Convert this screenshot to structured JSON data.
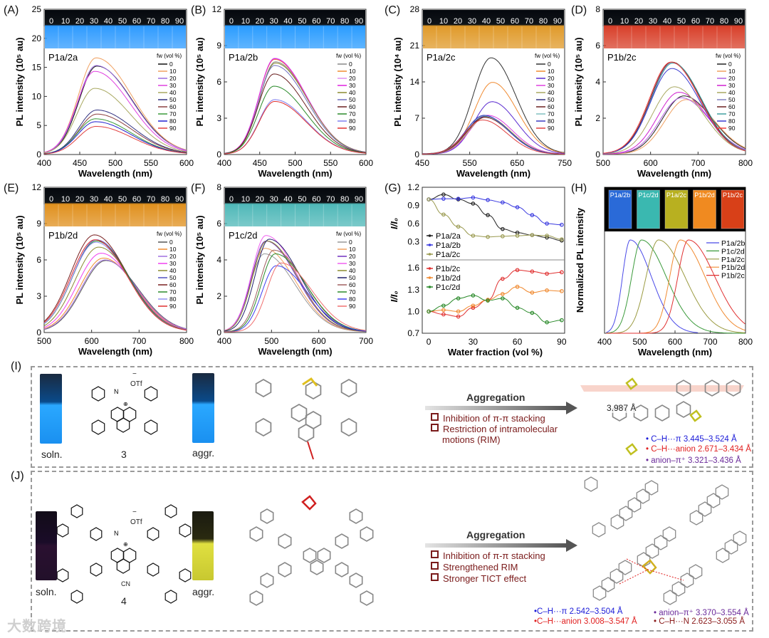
{
  "figure": {
    "panel_labels": {
      "A": "(A)",
      "B": "(B)",
      "C": "(C)",
      "D": "(D)",
      "E": "(E)",
      "F": "(F)",
      "G": "(G)",
      "H": "(H)",
      "I": "(I)",
      "J": "(J)"
    }
  },
  "chart_data": [
    {
      "id": "A",
      "type": "line",
      "title": "P1a/2a",
      "xlabel": "Wavelength (nm)",
      "ylabel": "PL intensity (10⁵ au)",
      "xlim": [
        400,
        600
      ],
      "ylim": [
        0,
        25
      ],
      "xticks": [
        400,
        450,
        500,
        550,
        600
      ],
      "yticks": [
        0,
        5,
        10,
        15,
        20,
        25
      ],
      "legend_title": "fw (vol %)",
      "legend_position": "right",
      "photo_labels": [
        "0",
        "10",
        "20",
        "30",
        "40",
        "50",
        "60",
        "70",
        "80",
        "90"
      ],
      "photo_color": "#2f9bff",
      "band_sigma_nm": [
        25,
        50
      ],
      "series": [
        {
          "name": "0",
          "color": "#111111",
          "peak_x": 474,
          "peak_y": 15.1
        },
        {
          "name": "10",
          "color": "#f0a060",
          "peak_x": 473,
          "peak_y": 16.5
        },
        {
          "name": "20",
          "color": "#9a6ae0",
          "peak_x": 473,
          "peak_y": 15.2
        },
        {
          "name": "30",
          "color": "#e040e0",
          "peak_x": 471,
          "peak_y": 14.2
        },
        {
          "name": "40",
          "color": "#a8a860",
          "peak_x": 471,
          "peak_y": 11.3
        },
        {
          "name": "50",
          "color": "#303080",
          "peak_x": 474,
          "peak_y": 7.6
        },
        {
          "name": "60",
          "color": "#8b4040",
          "peak_x": 474,
          "peak_y": 6.9
        },
        {
          "name": "70",
          "color": "#3a9a3a",
          "peak_x": 472,
          "peak_y": 6.1
        },
        {
          "name": "80",
          "color": "#2020d0",
          "peak_x": 472,
          "peak_y": 5.6
        },
        {
          "name": "90",
          "color": "#e04040",
          "peak_x": 473,
          "peak_y": 4.8
        }
      ]
    },
    {
      "id": "B",
      "type": "line",
      "title": "P1a/2b",
      "xlabel": "Wavelength (nm)",
      "ylabel": "PL intensity (10⁵ au)",
      "xlim": [
        400,
        600
      ],
      "ylim": [
        0,
        12
      ],
      "xticks": [
        400,
        450,
        500,
        550,
        600
      ],
      "yticks": [
        0,
        3,
        6,
        9,
        12
      ],
      "legend_title": "fw (vol %)",
      "legend_position": "right",
      "photo_labels": [
        "0",
        "10",
        "20",
        "30",
        "40",
        "50",
        "60",
        "70",
        "80",
        "90"
      ],
      "photo_color": "#2a9cff",
      "band_sigma_nm": [
        22,
        45
      ],
      "series": [
        {
          "name": "0",
          "color": "#888888",
          "peak_x": 472,
          "peak_y": 7.6
        },
        {
          "name": "10",
          "color": "#f08a30",
          "peak_x": 471,
          "peak_y": 7.8
        },
        {
          "name": "20",
          "color": "#e090f0",
          "peak_x": 471,
          "peak_y": 7.9
        },
        {
          "name": "30",
          "color": "#e020e0",
          "peak_x": 471,
          "peak_y": 7.85
        },
        {
          "name": "40",
          "color": "#8a8a30",
          "peak_x": 472,
          "peak_y": 7.5
        },
        {
          "name": "50",
          "color": "#7070c0",
          "peak_x": 471,
          "peak_y": 7.3
        },
        {
          "name": "60",
          "color": "#6a2020",
          "peak_x": 470,
          "peak_y": 6.6
        },
        {
          "name": "70",
          "color": "#2a8a2a",
          "peak_x": 470,
          "peak_y": 5.6
        },
        {
          "name": "80",
          "color": "#8080f0",
          "peak_x": 471,
          "peak_y": 4.5
        },
        {
          "name": "90",
          "color": "#e03030",
          "peak_x": 471,
          "peak_y": 4.35
        }
      ]
    },
    {
      "id": "C",
      "type": "line",
      "title": "P1a/2c",
      "xlabel": "Wavelength (nm)",
      "ylabel": "PL intensity (10⁴ au)",
      "xlim": [
        450,
        750
      ],
      "ylim": [
        0,
        28
      ],
      "xticks": [
        450,
        550,
        650,
        750
      ],
      "yticks": [
        0,
        7,
        14,
        21,
        28
      ],
      "legend_title": "fw (vol %)",
      "legend_position": "right",
      "photo_labels": [
        "0",
        "10",
        "20",
        "30",
        "40",
        "50",
        "60",
        "70",
        "80",
        "90"
      ],
      "photo_color": "#e09a2a",
      "band_sigma_nm": [
        38,
        52
      ],
      "series": [
        {
          "name": "0",
          "color": "#333333",
          "peak_x": 595,
          "peak_y": 18.5
        },
        {
          "name": "10",
          "color": "#f08a30",
          "peak_x": 598,
          "peak_y": 13.8
        },
        {
          "name": "20",
          "color": "#5a2ad0",
          "peak_x": 597,
          "peak_y": 10.1
        },
        {
          "name": "30",
          "color": "#e040e0",
          "peak_x": 588,
          "peak_y": 7.5
        },
        {
          "name": "40",
          "color": "#a8a860",
          "peak_x": 585,
          "peak_y": 7.2
        },
        {
          "name": "50",
          "color": "#303080",
          "peak_x": 582,
          "peak_y": 7.3
        },
        {
          "name": "60",
          "color": "#6a2020",
          "peak_x": 582,
          "peak_y": 7.1
        },
        {
          "name": "70",
          "color": "#80c0c0",
          "peak_x": 580,
          "peak_y": 7.4
        },
        {
          "name": "80",
          "color": "#3a3ac0",
          "peak_x": 580,
          "peak_y": 7.5
        },
        {
          "name": "90",
          "color": "#e04040",
          "peak_x": 577,
          "peak_y": 6.6
        }
      ]
    },
    {
      "id": "D",
      "type": "line",
      "title": "P1b/2c",
      "xlabel": "Wavelength (nm)",
      "ylabel": "PL intensity (10⁵ au)",
      "xlim": [
        500,
        800
      ],
      "ylim": [
        0,
        8
      ],
      "xticks": [
        500,
        600,
        700,
        800
      ],
      "yticks": [
        0,
        2,
        4,
        6,
        8
      ],
      "legend_title": "fw (vol %)",
      "legend_position": "right",
      "photo_labels": [
        "0",
        "10",
        "20",
        "30",
        "40",
        "50",
        "60",
        "70",
        "80",
        "90"
      ],
      "photo_color": "#d8402a",
      "band_sigma_nm": [
        45,
        60
      ],
      "series": [
        {
          "name": "0",
          "color": "#222222",
          "peak_x": 670,
          "peak_y": 3.2
        },
        {
          "name": "10",
          "color": "#f0a060",
          "peak_x": 675,
          "peak_y": 3.0
        },
        {
          "name": "20",
          "color": "#b060e0",
          "peak_x": 665,
          "peak_y": 3.1
        },
        {
          "name": "30",
          "color": "#d020d0",
          "peak_x": 660,
          "peak_y": 3.4
        },
        {
          "name": "40",
          "color": "#a8a860",
          "peak_x": 650,
          "peak_y": 3.7
        },
        {
          "name": "50",
          "color": "#8080c0",
          "peak_x": 646,
          "peak_y": 5.0
        },
        {
          "name": "60",
          "color": "#6a2020",
          "peak_x": 645,
          "peak_y": 5.05
        },
        {
          "name": "70",
          "color": "#40a0a0",
          "peak_x": 647,
          "peak_y": 5.0
        },
        {
          "name": "80",
          "color": "#3a3ad0",
          "peak_x": 645,
          "peak_y": 4.7
        },
        {
          "name": "90",
          "color": "#f04040",
          "peak_x": 643,
          "peak_y": 5.05
        }
      ]
    },
    {
      "id": "E",
      "type": "line",
      "title": "P1b/2d",
      "xlabel": "Wavelength (nm)",
      "ylabel": "PL intensity (10⁵ au)",
      "xlim": [
        500,
        800
      ],
      "ylim": [
        0,
        12
      ],
      "xticks": [
        500,
        600,
        700,
        800
      ],
      "yticks": [
        0,
        3,
        6,
        9,
        12
      ],
      "legend_title": "fw (vol %)",
      "legend_position": "right",
      "photo_labels": [
        "0",
        "10",
        "20",
        "30",
        "40",
        "50",
        "60",
        "70",
        "80",
        "90"
      ],
      "photo_color": "#e0901e",
      "band_sigma_nm": [
        50,
        68
      ],
      "series": [
        {
          "name": "0",
          "color": "#555555",
          "peak_x": 630,
          "peak_y": 5.9
        },
        {
          "name": "10",
          "color": "#f08a30",
          "peak_x": 625,
          "peak_y": 6.1
        },
        {
          "name": "20",
          "color": "#a070e0",
          "peak_x": 628,
          "peak_y": 5.95
        },
        {
          "name": "30",
          "color": "#f040f0",
          "peak_x": 620,
          "peak_y": 6.5
        },
        {
          "name": "40",
          "color": "#8a8a30",
          "peak_x": 615,
          "peak_y": 7.0
        },
        {
          "name": "50",
          "color": "#5050c0",
          "peak_x": 610,
          "peak_y": 7.6
        },
        {
          "name": "60",
          "color": "#7a2020",
          "peak_x": 606,
          "peak_y": 8.0
        },
        {
          "name": "70",
          "color": "#2a8a2a",
          "peak_x": 610,
          "peak_y": 7.5
        },
        {
          "name": "80",
          "color": "#9090f0",
          "peak_x": 609,
          "peak_y": 7.4
        },
        {
          "name": "90",
          "color": "#e03030",
          "peak_x": 607,
          "peak_y": 7.6
        }
      ]
    },
    {
      "id": "F",
      "type": "line",
      "title": "P1c/2d",
      "xlabel": "Wavelength (nm)",
      "ylabel": "PL intensity (10⁵ au)",
      "xlim": [
        400,
        700
      ],
      "ylim": [
        0,
        8
      ],
      "xticks": [
        400,
        500,
        600,
        700
      ],
      "yticks": [
        0,
        2,
        4,
        6,
        8
      ],
      "legend_title": "fw (vol %)",
      "legend_position": "right",
      "photo_labels": [
        "0",
        "10",
        "20",
        "30",
        "40",
        "50",
        "60",
        "70",
        "80",
        "90"
      ],
      "photo_color": "#4fb8b8",
      "band_sigma_nm": [
        30,
        65
      ],
      "series": [
        {
          "name": "0",
          "color": "#999999",
          "peak_x": 485,
          "peak_y": 4.3
        },
        {
          "name": "10",
          "color": "#f0a060",
          "peak_x": 486,
          "peak_y": 4.6
        },
        {
          "name": "20",
          "color": "#7030c0",
          "peak_x": 488,
          "peak_y": 5.0
        },
        {
          "name": "30",
          "color": "#f060f0",
          "peak_x": 488,
          "peak_y": 5.3
        },
        {
          "name": "40",
          "color": "#8a8a30",
          "peak_x": 490,
          "peak_y": 5.0
        },
        {
          "name": "50",
          "color": "#20206a",
          "peak_x": 495,
          "peak_y": 5.1
        },
        {
          "name": "60",
          "color": "#a06060",
          "peak_x": 505,
          "peak_y": 4.5
        },
        {
          "name": "70",
          "color": "#2a8a2a",
          "peak_x": 508,
          "peak_y": 4.3
        },
        {
          "name": "80",
          "color": "#4040f0",
          "peak_x": 510,
          "peak_y": 3.65
        },
        {
          "name": "90",
          "color": "#f07070",
          "peak_x": 520,
          "peak_y": 3.8
        }
      ]
    },
    {
      "id": "G",
      "type": "line",
      "xlabel": "Water fraction (vol %)",
      "ylabel": "I/I₀",
      "x": [
        0,
        10,
        20,
        30,
        40,
        50,
        60,
        70,
        80,
        90
      ],
      "xlim": [
        -2,
        92
      ],
      "xticks": [
        0,
        30,
        60,
        90
      ],
      "subplots": [
        {
          "ylim": [
            0,
            1.2
          ],
          "yticks": [
            0.3,
            0.6,
            0.9,
            1.2
          ],
          "legend_position": "bottom-left",
          "series": [
            {
              "name": "P1a/2a",
              "color": "#222222",
              "values": [
                1.0,
                1.08,
                1.0,
                0.93,
                0.74,
                0.51,
                0.45,
                0.41,
                0.37,
                0.32
              ]
            },
            {
              "name": "P1a/2b",
              "color": "#3a3ae0",
              "values": [
                1.0,
                1.01,
                1.01,
                1.03,
                0.99,
                0.95,
                0.87,
                0.74,
                0.6,
                0.58
              ]
            },
            {
              "name": "P1a/2c",
              "color": "#9a9a50",
              "values": [
                1.0,
                0.75,
                0.55,
                0.4,
                0.38,
                0.39,
                0.4,
                0.41,
                0.4,
                0.34
              ]
            }
          ]
        },
        {
          "ylim": [
            0.7,
            1.71
          ],
          "yticks": [
            0.7,
            1.0,
            1.3,
            1.6
          ],
          "legend_position": "top-left",
          "series": [
            {
              "name": "P1b/2c",
              "color": "#e03030",
              "values": [
                1.0,
                0.96,
                0.93,
                1.05,
                1.16,
                1.45,
                1.57,
                1.55,
                1.52,
                1.54
              ]
            },
            {
              "name": "P1b/2d",
              "color": "#f08a30",
              "values": [
                1.0,
                1.02,
                1.0,
                1.08,
                1.16,
                1.24,
                1.34,
                1.26,
                1.29,
                1.28
              ]
            },
            {
              "name": "P1c/2d",
              "color": "#2a8a2a",
              "values": [
                1.0,
                1.08,
                1.18,
                1.22,
                1.15,
                1.18,
                1.05,
                0.98,
                0.85,
                0.88
              ]
            }
          ]
        }
      ]
    },
    {
      "id": "H",
      "type": "line",
      "xlabel": "Wavelength (nm)",
      "ylabel": "Normalized PL intensity",
      "xlim": [
        400,
        800
      ],
      "ylim": [
        0,
        1.0
      ],
      "xticks": [
        400,
        500,
        600,
        700,
        800
      ],
      "legend_position": "right",
      "photos": [
        {
          "label": "P1a/2b",
          "color": "#2a6ad8"
        },
        {
          "label": "P1c/2d",
          "color": "#3ab8b0"
        },
        {
          "label": "P1a/2c",
          "color": "#b8b020"
        },
        {
          "label": "P1b/2d",
          "color": "#f08a20"
        },
        {
          "label": "P1b/2c",
          "color": "#d84018"
        }
      ],
      "series": [
        {
          "name": "P1a/2b",
          "color": "#4a4ae8",
          "peak_x": 473,
          "x_end": 665,
          "band_sigma_nm": [
            22,
            60
          ]
        },
        {
          "name": "P1c/2d",
          "color": "#3a9a3a",
          "peak_x": 505,
          "x_end": 800,
          "band_sigma_nm": [
            28,
            70
          ]
        },
        {
          "name": "P1a/2c",
          "color": "#9a9a40",
          "peak_x": 553,
          "x_end": 800,
          "band_sigma_nm": [
            35,
            75
          ]
        },
        {
          "name": "P1b/2d",
          "color": "#f08a30",
          "peak_x": 615,
          "x_end": 800,
          "band_sigma_nm": [
            30,
            70
          ]
        },
        {
          "name": "P1b/2c",
          "color": "#e03030",
          "peak_x": 638,
          "x_end": 800,
          "band_sigma_nm": [
            30,
            75
          ]
        }
      ]
    }
  ],
  "panel_I": {
    "vial_soln": "soln.",
    "vial_aggr": "aggr.",
    "compound_number": "3",
    "counterion": "OTf",
    "charge": "+",
    "minus": "−",
    "arrow_label": "Aggregation",
    "mechanisms": [
      "Inhibition of π-π stacking",
      "Restriction of intramolecular",
      "motions (RIM)"
    ],
    "distance_label": "3.987 Å",
    "interactions": [
      {
        "text": "• C–H···π  3.445–3.524 Å",
        "color": "#1a1ad8"
      },
      {
        "text": "• C–H···anion 2.671–3.434 Å",
        "color": "#e02020"
      },
      {
        "text": "• anion–π⁺  3.321–3.436 Å",
        "color": "#6a2a9a"
      }
    ]
  },
  "panel_J": {
    "vial_soln": "soln.",
    "vial_aggr": "aggr.",
    "compound_number": "4",
    "counterion": "OTf",
    "substituent": "CN",
    "charge": "+",
    "minus": "−",
    "arrow_label": "Aggregation",
    "mechanisms": [
      "Inhibition of π-π stacking",
      "Strengthened RIM",
      "Stronger TICT effect"
    ],
    "interactions": [
      {
        "text": "•C–H···π  2.542–3.504 Å",
        "color": "#1a1ad8"
      },
      {
        "text": "• anion–π⁺ 3.370–3.554 Å",
        "color": "#6a2a9a"
      },
      {
        "text": "•C–H···anion 3.008–3.547 Å",
        "color": "#e02020"
      },
      {
        "text": "• C–H···N  2.623–3.055 Å",
        "color": "#8a1a1a"
      }
    ]
  },
  "watermark": "大数跨境"
}
